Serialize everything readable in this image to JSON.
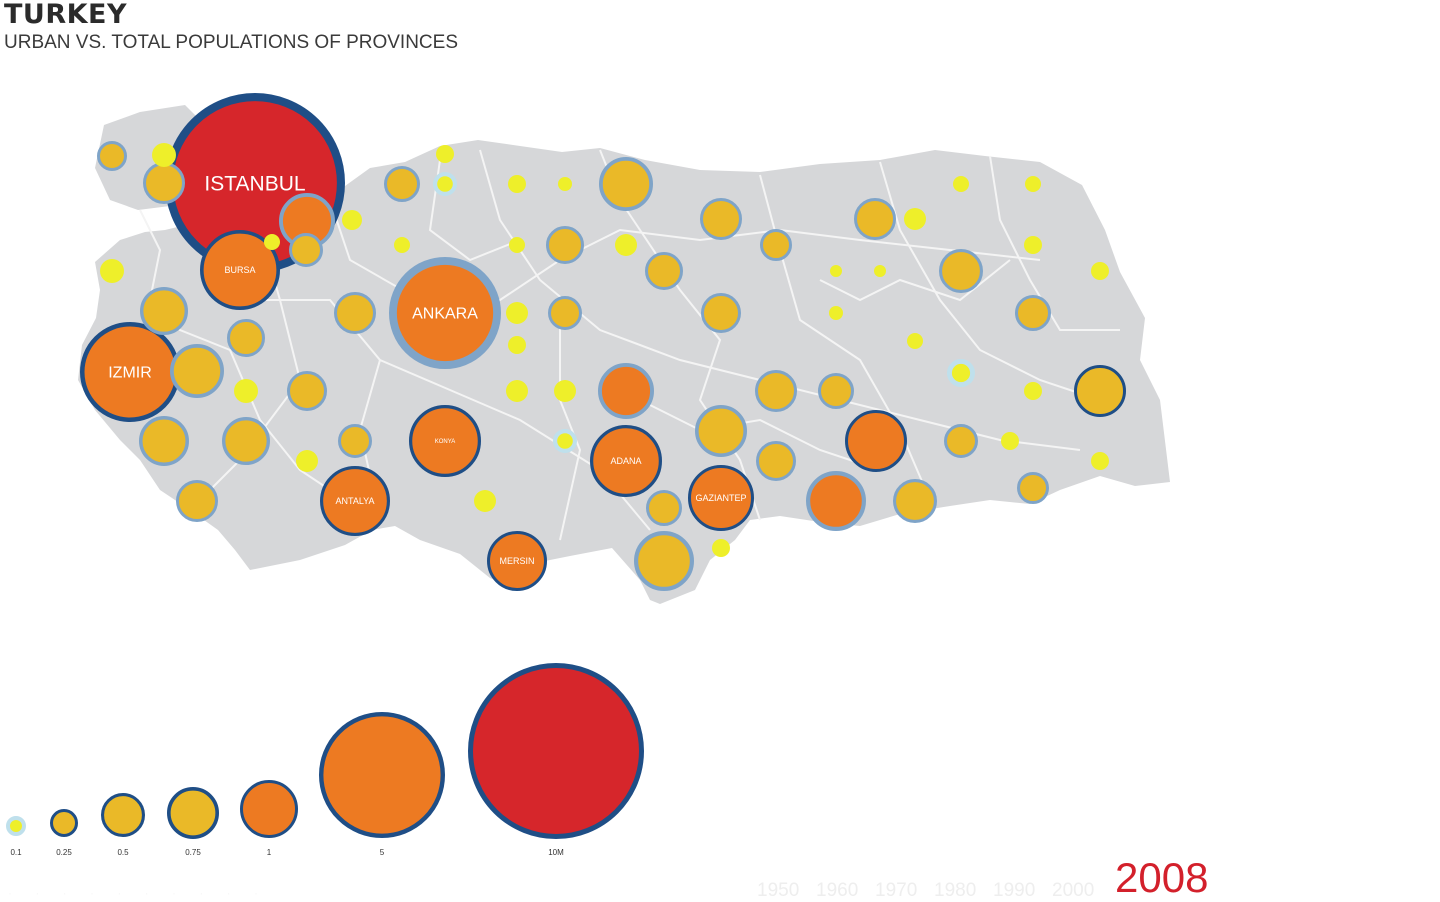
{
  "header": {
    "title": "TURKEY",
    "subtitle": "URBAN VS. TOTAL POPULATIONS OF PROVINCES"
  },
  "colors": {
    "land": "#d6d7d9",
    "border": "#f4f4f4",
    "ring": "#1f4e86",
    "ring_light": "#7fa4c8",
    "tiny_ring": "#bfe0ec",
    "dot_yellow": "#eeef2a",
    "gold": "#eab928",
    "orange": "#ed7a22",
    "red": "#d6262b",
    "year": "#d3202b"
  },
  "cities": [
    {
      "name": "ISTANBUL",
      "size": "large",
      "color": "red"
    },
    {
      "name": "BURSA",
      "size": "small",
      "color": "orange"
    },
    {
      "name": "ANKARA",
      "size": "medium",
      "color": "orange"
    },
    {
      "name": "IZMIR",
      "size": "medium",
      "color": "orange"
    },
    {
      "name": "KONYA",
      "size": "tiny",
      "color": "orange"
    },
    {
      "name": "ADANA",
      "size": "small",
      "color": "orange"
    },
    {
      "name": "GAZIANTEP",
      "size": "small",
      "color": "orange"
    },
    {
      "name": "ANTALYA",
      "size": "small",
      "color": "orange"
    },
    {
      "name": "MERSIN",
      "size": "small",
      "color": "orange"
    }
  ],
  "legend": {
    "items": [
      {
        "label": "0.1",
        "kind": "tiny"
      },
      {
        "label": "0.25",
        "kind": "gold"
      },
      {
        "label": "0.5",
        "kind": "gold"
      },
      {
        "label": "0.75",
        "kind": "gold"
      },
      {
        "label": "1",
        "kind": "orange"
      },
      {
        "label": "5",
        "kind": "orange"
      },
      {
        "label": "10M",
        "kind": "red"
      }
    ]
  },
  "timeline": {
    "decades": [
      "1950",
      "1960",
      "1970",
      "1980",
      "1990",
      "2000"
    ],
    "current_year": "2008"
  }
}
